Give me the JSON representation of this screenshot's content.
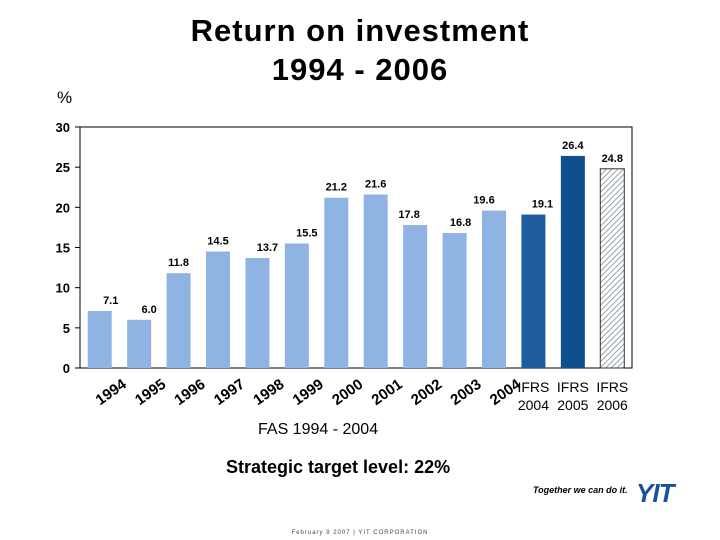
{
  "slide": {
    "title_line1": "Return on investment",
    "title_line2": "1994 - 2006",
    "unit": "%",
    "fas_label": "FAS 1994 - 2004",
    "strategic_target": "Strategic target level: 22%",
    "footer": "February 9 2007  |  YIT CORPORATION",
    "slogan": "Together we can do it.",
    "logo_text": "YIT"
  },
  "chart_data": {
    "type": "bar",
    "title": "Return on investment 1994 - 2006",
    "ylabel": "%",
    "ylim": [
      0,
      30
    ],
    "yticks": [
      0,
      5,
      10,
      15,
      20,
      25,
      30
    ],
    "categories": [
      {
        "line1": "1994",
        "line2": "",
        "rotated": true
      },
      {
        "line1": "1995",
        "line2": "",
        "rotated": true
      },
      {
        "line1": "1996",
        "line2": "",
        "rotated": true
      },
      {
        "line1": "1997",
        "line2": "",
        "rotated": true
      },
      {
        "line1": "1998",
        "line2": "",
        "rotated": true
      },
      {
        "line1": "1999",
        "line2": "",
        "rotated": true
      },
      {
        "line1": "2000",
        "line2": "",
        "rotated": true
      },
      {
        "line1": "2001",
        "line2": "",
        "rotated": true
      },
      {
        "line1": "2002",
        "line2": "",
        "rotated": true
      },
      {
        "line1": "2003",
        "line2": "",
        "rotated": true
      },
      {
        "line1": "2004",
        "line2": "",
        "rotated": true
      },
      {
        "line1": "IFRS",
        "line2": "2004",
        "rotated": false
      },
      {
        "line1": "IFRS",
        "line2": "2005",
        "rotated": false
      },
      {
        "line1": "IFRS",
        "line2": "2006",
        "rotated": false
      }
    ],
    "values": [
      7.1,
      6.0,
      11.8,
      14.5,
      13.7,
      15.5,
      21.2,
      21.6,
      17.8,
      16.8,
      19.6,
      19.1,
      26.4,
      24.8
    ],
    "value_labels": [
      "7.1",
      "6.0",
      "11.8",
      "14.5",
      "13.7",
      "15.5",
      "21.2",
      "21.6",
      "17.8",
      "16.8",
      "19.6",
      "19.1",
      "26.4",
      "24.8"
    ],
    "bar_styles": [
      "fas",
      "fas",
      "fas",
      "fas",
      "fas",
      "fas",
      "fas",
      "fas",
      "fas",
      "fas",
      "fas",
      "ifrs2004",
      "ifrs2005",
      "ifrs2006"
    ],
    "colors": {
      "fas": "#8fb4e3",
      "ifrs2004": "#1f5c9e",
      "ifrs2005": "#0f4f8e",
      "ifrs2006_hatch": "#7a8a99",
      "bar_border": "#333333"
    }
  }
}
